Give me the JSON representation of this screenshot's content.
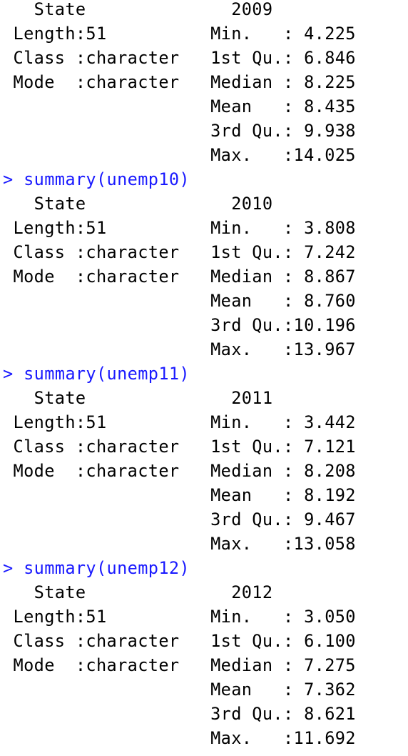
{
  "console": {
    "blocks": [
      {
        "command": null,
        "header": "   State              2009     ",
        "rows": [
          " Length:51          Min.   : 4.225  ",
          " Class :character   1st Qu.: 6.846  ",
          " Mode  :character   Median : 8.225  ",
          "                    Mean   : 8.435  ",
          "                    3rd Qu.: 9.938  ",
          "                    Max.   :14.025  "
        ]
      },
      {
        "command": "> summary(unemp10)",
        "header": "   State              2010     ",
        "rows": [
          " Length:51          Min.   : 3.808  ",
          " Class :character   1st Qu.: 7.242  ",
          " Mode  :character   Median : 8.867  ",
          "                    Mean   : 8.760  ",
          "                    3rd Qu.:10.196  ",
          "                    Max.   :13.967  "
        ]
      },
      {
        "command": "> summary(unemp11)",
        "header": "   State              2011     ",
        "rows": [
          " Length:51          Min.   : 3.442  ",
          " Class :character   1st Qu.: 7.121  ",
          " Mode  :character   Median : 8.208  ",
          "                    Mean   : 8.192  ",
          "                    3rd Qu.: 9.467  ",
          "                    Max.   :13.058  "
        ]
      },
      {
        "command": "> summary(unemp12)",
        "header": "   State              2012     ",
        "rows": [
          " Length:51          Min.   : 3.050  ",
          " Class :character   1st Qu.: 6.100  ",
          " Mode  :character   Median : 7.275  ",
          "                    Mean   : 7.362  ",
          "                    3rd Qu.: 8.621  ",
          "                    Max.   :11.692  "
        ]
      }
    ]
  },
  "colors": {
    "command_text": "#1a1aff",
    "output_text": "#000000",
    "background": "#ffffff"
  }
}
